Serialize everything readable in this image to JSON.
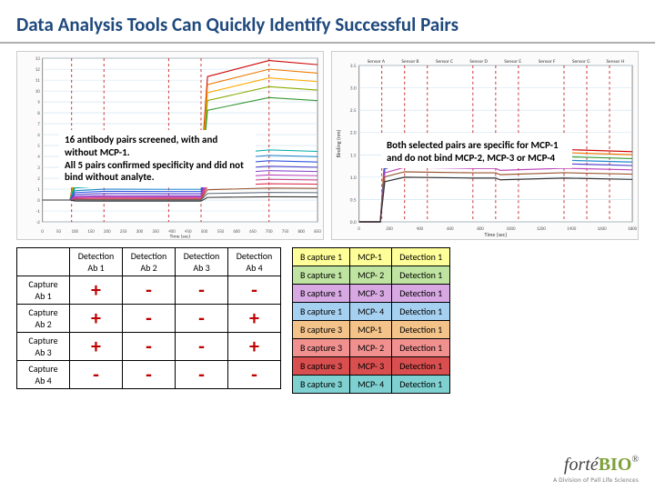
{
  "title": "Data Analysis Tools Can Quickly Identify Successful Pairs",
  "left_chart": {
    "type": "line",
    "caption_lines": [
      "16 antibody pairs screened, with and without MCP-1.",
      "All 5 pairs confirmed specificity and did not bind without analyte."
    ],
    "xlim": [
      0,
      850
    ],
    "ylim": [
      -2,
      13
    ],
    "xticks": [
      0,
      50,
      100,
      150,
      200,
      250,
      300,
      350,
      400,
      450,
      500,
      550,
      600,
      650,
      700,
      750,
      800,
      850
    ],
    "xlabel": "Time (sec)",
    "vertical_dashes_x": [
      90,
      190,
      390,
      490,
      700
    ],
    "dash_color": "#cc3333",
    "grid_color": "#c8e0f0",
    "background_color": "#ffffff",
    "series": [
      {
        "color": "#cc0000",
        "plateau1": 3.0,
        "plateau2": 12.8
      },
      {
        "color": "#ee7700",
        "plateau1": 2.6,
        "plateau2": 12.0
      },
      {
        "color": "#ffaa00",
        "plateau1": 2.2,
        "plateau2": 11.2
      },
      {
        "color": "#88aa00",
        "plateau1": 1.9,
        "plateau2": 10.4
      },
      {
        "color": "#339933",
        "plateau1": 1.6,
        "plateau2": 9.4
      },
      {
        "color": "#00aaaa",
        "plateau1": 1.3,
        "plateau2": 4.6
      },
      {
        "color": "#2288cc",
        "plateau1": 1.0,
        "plateau2": 4.1
      },
      {
        "color": "#3355dd",
        "plateau1": 0.8,
        "plateau2": 3.6
      },
      {
        "color": "#5544cc",
        "plateau1": 0.6,
        "plateau2": 3.1
      },
      {
        "color": "#8844cc",
        "plateau1": 0.4,
        "plateau2": 2.7
      },
      {
        "color": "#bb44bb",
        "plateau1": 0.3,
        "plateau2": 2.3
      },
      {
        "color": "#cc4488",
        "plateau1": 0.2,
        "plateau2": 1.9
      },
      {
        "color": "#dd3355",
        "plateau1": 0.1,
        "plateau2": 1.5
      },
      {
        "color": "#995533",
        "plateau1": 0.05,
        "plateau2": 1.1
      },
      {
        "color": "#556677",
        "plateau1": 0.0,
        "plateau2": 0.7
      },
      {
        "color": "#333333",
        "plateau1": -0.1,
        "plateau2": 0.3
      }
    ]
  },
  "right_chart": {
    "type": "line",
    "caption_lines": [
      "Both selected pairs are specific for MCP-1 and do not bind MCP-2, MCP-3 or MCP-4"
    ],
    "sensor_labels": [
      "Sensor A",
      "Sensor B",
      "Sensor C",
      "Sensor D",
      "Sensor E",
      "Sensor F",
      "Sensor G",
      "Sensor H"
    ],
    "xlim": [
      0,
      1800
    ],
    "ylim": [
      0,
      3.5
    ],
    "yticks": [
      0,
      0.5,
      1.0,
      1.5,
      2.0,
      2.5,
      3.0,
      3.5
    ],
    "ylabel": "Binding (nm)",
    "xlabel": "Time (sec)",
    "vertical_dashes_x": [
      150,
      300,
      450,
      750,
      900,
      1050,
      1350,
      1500,
      1650
    ],
    "dash_color": "#cc3333",
    "grid_color": "#c8e0f0",
    "background_color": "#ffffff",
    "series": [
      {
        "color": "#cc0000",
        "plateau1": 1.65,
        "plateau2": 1.62
      },
      {
        "color": "#ee7700",
        "plateau1": 1.58,
        "plateau2": 1.55
      },
      {
        "color": "#339933",
        "plateau1": 1.48,
        "plateau2": 1.46
      },
      {
        "color": "#2288cc",
        "plateau1": 1.4,
        "plateau2": 1.38
      },
      {
        "color": "#5544cc",
        "plateau1": 1.32,
        "plateau2": 1.3
      },
      {
        "color": "#bb44bb",
        "plateau1": 1.22,
        "plateau2": 1.2
      },
      {
        "color": "#995533",
        "plateau1": 1.12,
        "plateau2": 1.1
      },
      {
        "color": "#333333",
        "plateau1": 1.0,
        "plateau2": 0.98
      }
    ]
  },
  "matrix": {
    "col_headers": [
      "Detection Ab 1",
      "Detection Ab 2",
      "Detection Ab 3",
      "Detection Ab 4"
    ],
    "row_headers": [
      "Capture Ab 1",
      "Capture Ab 2",
      "Capture Ab 3",
      "Capture Ab 4"
    ],
    "cells": [
      [
        "+",
        "-",
        "-",
        "-"
      ],
      [
        "+",
        "-",
        "-",
        "+"
      ],
      [
        "+",
        "-",
        "-",
        "+"
      ],
      [
        "-",
        "-",
        "-",
        "-"
      ]
    ],
    "symbol_color": "#c00000"
  },
  "specificity": {
    "rows": [
      {
        "capture": "B capture 1",
        "analyte": "MCP-1",
        "detect": "Detection 1",
        "bg": "#ffff99"
      },
      {
        "capture": "B capture 1",
        "analyte": "MCP- 2",
        "detect": "Detection 1",
        "bg": "#bfe4a1"
      },
      {
        "capture": "B capture 1",
        "analyte": "MCP- 3",
        "detect": "Detection 1",
        "bg": "#d7a8e2"
      },
      {
        "capture": "B capture 1",
        "analyte": "MCP- 4",
        "detect": "Detection 1",
        "bg": "#a6d0f0"
      },
      {
        "capture": "B capture 3",
        "analyte": "MCP-1",
        "detect": "Detection 1",
        "bg": "#f4c38a"
      },
      {
        "capture": "B capture 3",
        "analyte": "MCP- 2",
        "detect": "Detection 1",
        "bg": "#f0908f"
      },
      {
        "capture": "B capture 3",
        "analyte": "MCP- 3",
        "detect": "Detection 1",
        "bg": "#d94f4f"
      },
      {
        "capture": "B capture 3",
        "analyte": "MCP- 4",
        "detect": "Detection 1",
        "bg": "#7fd1d1"
      }
    ]
  },
  "logo": {
    "main_a": "forté",
    "main_b": "BIO",
    "sub": "A Division of Pall Life Sciences"
  }
}
